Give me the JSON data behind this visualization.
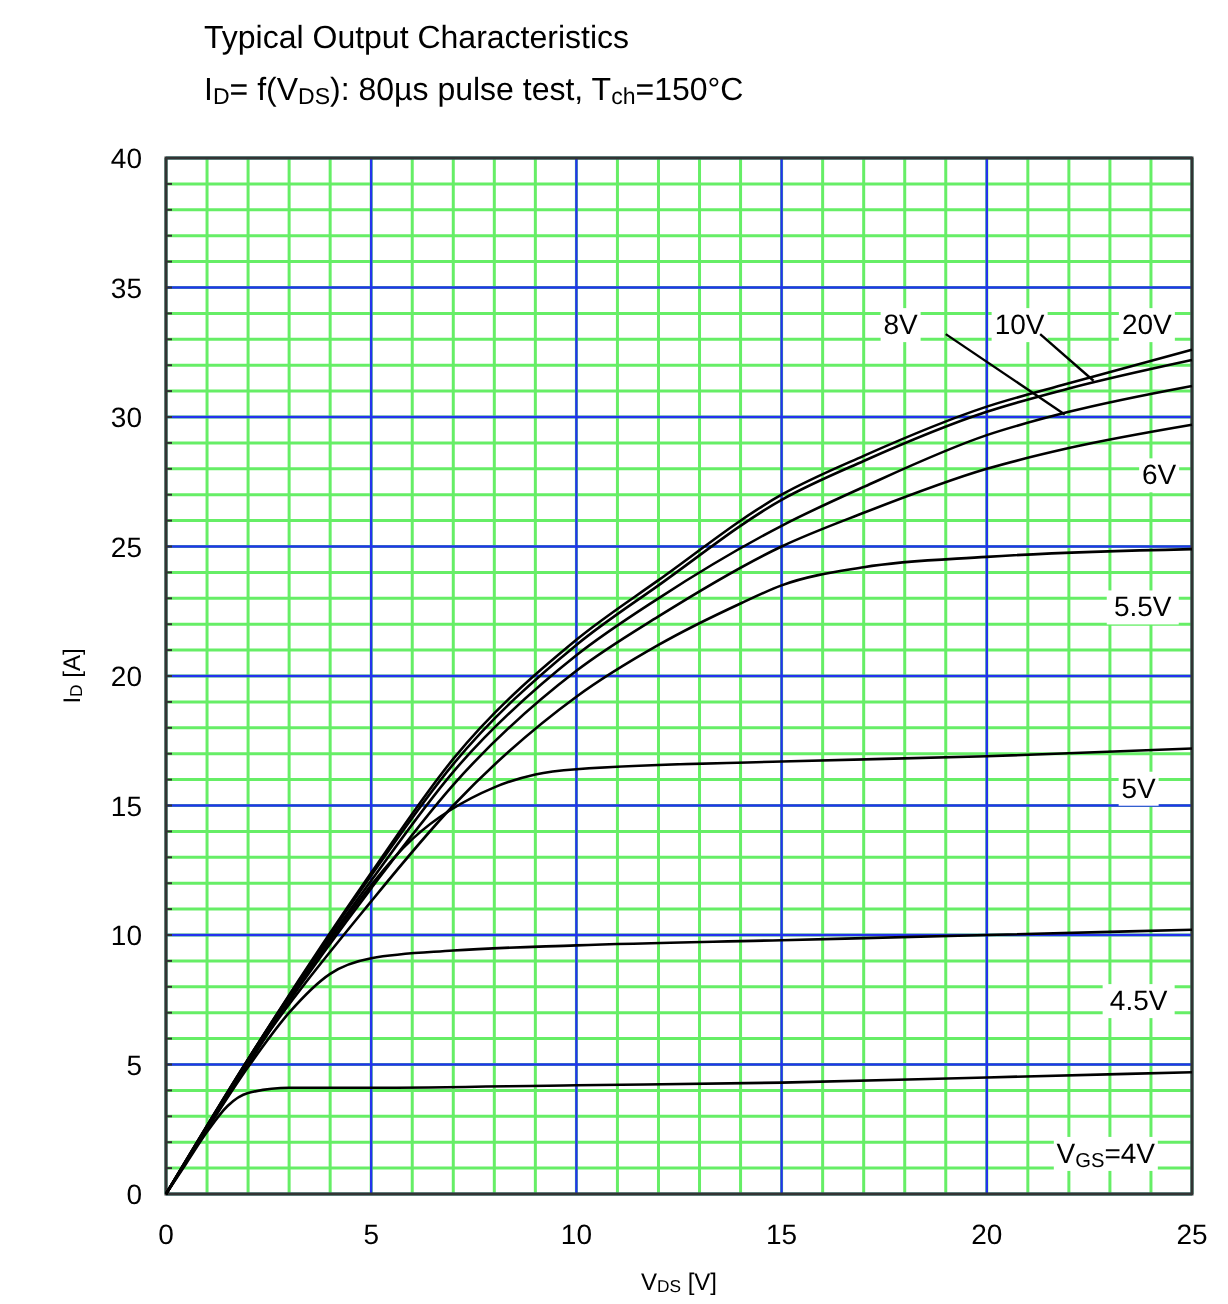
{
  "chart_data": {
    "type": "line",
    "title": "Typical Output Characteristics",
    "subtitle": "I$_{D}$= f(V$_{DS}$): 80µs pulse test, T$_{ch}$=150°C",
    "xlabel": "V$_{DS}$ [V]",
    "ylabel": "I$_{D}$ [A]",
    "xlim": [
      0,
      25
    ],
    "xticks": [
      0,
      5,
      10,
      15,
      20,
      25
    ],
    "ylim": [
      0,
      40
    ],
    "yticks": [
      0,
      5,
      10,
      15,
      20,
      25,
      30,
      35,
      40
    ],
    "grid": true,
    "marker": "none",
    "line_style": "solid",
    "series": [
      {
        "name": "V$_{GS}$=4V",
        "color": "#000000",
        "x": [
          0,
          0.5,
          1,
          1.5,
          2,
          3,
          5,
          10,
          15,
          20,
          25
        ],
        "values": [
          0,
          1.2,
          2.4,
          3.4,
          3.9,
          4.1,
          4.1,
          4.2,
          4.3,
          4.5,
          4.7
        ]
      },
      {
        "name": "4.5V",
        "color": "#000000",
        "x": [
          0,
          1,
          2,
          3,
          4,
          5,
          7,
          10,
          15,
          20,
          25
        ],
        "values": [
          0,
          2.5,
          4.9,
          7.0,
          8.5,
          9.1,
          9.4,
          9.6,
          9.8,
          10.0,
          10.2
        ]
      },
      {
        "name": "5V",
        "color": "#000000",
        "x": [
          0,
          2,
          4,
          6,
          8,
          9,
          10,
          15,
          20,
          25
        ],
        "values": [
          0,
          5.0,
          9.8,
          13.7,
          15.7,
          16.2,
          16.4,
          16.7,
          16.9,
          17.2
        ]
      },
      {
        "name": "5.5V",
        "color": "#000000",
        "x": [
          0,
          2,
          5,
          7,
          10,
          12,
          14,
          15,
          17,
          20,
          25
        ],
        "values": [
          0,
          5.1,
          11.3,
          15.0,
          19.2,
          21.2,
          22.8,
          23.5,
          24.2,
          24.6,
          24.9
        ]
      },
      {
        "name": "6V",
        "color": "#000000",
        "x": [
          0,
          2,
          5,
          7,
          10,
          12,
          15,
          17,
          20,
          22,
          25
        ],
        "values": [
          0,
          5.1,
          11.8,
          15.8,
          20.2,
          22.3,
          25.0,
          26.3,
          28.0,
          28.8,
          29.7
        ]
      },
      {
        "name": "8V",
        "color": "#000000",
        "x": [
          0,
          2,
          5,
          7,
          10,
          12,
          15,
          17,
          20,
          22,
          25
        ],
        "values": [
          0,
          5.2,
          12.1,
          16.3,
          20.8,
          23.0,
          25.8,
          27.3,
          29.3,
          30.2,
          31.2
        ]
      },
      {
        "name": "10V",
        "color": "#000000",
        "x": [
          0,
          2,
          5,
          7,
          10,
          12,
          15,
          17,
          20,
          22,
          25
        ],
        "values": [
          0,
          5.2,
          12.3,
          16.6,
          21.2,
          23.5,
          26.8,
          28.3,
          30.2,
          31.1,
          32.2
        ]
      },
      {
        "name": "20V",
        "color": "#000000",
        "x": [
          0,
          2,
          5,
          7,
          10,
          12,
          15,
          17,
          20,
          22,
          25
        ],
        "values": [
          0,
          5.2,
          12.4,
          16.8,
          21.4,
          23.7,
          27.0,
          28.5,
          30.4,
          31.3,
          32.6
        ]
      }
    ]
  }
}
